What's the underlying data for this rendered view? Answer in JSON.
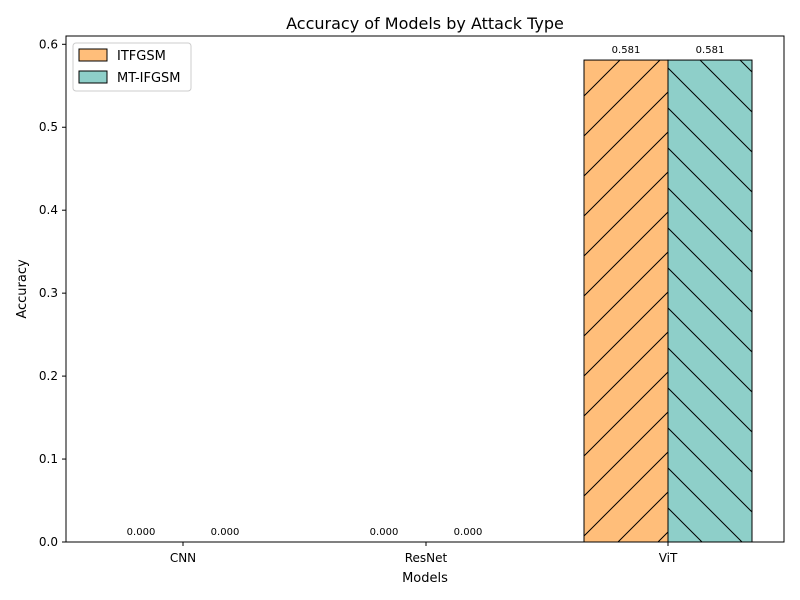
{
  "chart_data": {
    "type": "bar",
    "title": "Accuracy of Models by Attack Type",
    "xlabel": "Models",
    "ylabel": "Accuracy",
    "categories": [
      "CNN",
      "ResNet",
      "ViT"
    ],
    "series": [
      {
        "name": "ITFGSM",
        "values": [
          0.0,
          0.0,
          0.581
        ],
        "labels": [
          "0.000",
          "0.000",
          "0.581"
        ],
        "color": "#ffbe7a",
        "hatch": "forward"
      },
      {
        "name": "MT-IFGSM",
        "values": [
          0.0,
          0.0,
          0.581
        ],
        "labels": [
          "0.000",
          "0.000",
          "0.581"
        ],
        "color": "#8ecfc9",
        "hatch": "backward"
      }
    ],
    "ylim": [
      0,
      0.61
    ],
    "yticks": [
      0.0,
      0.1,
      0.2,
      0.3,
      0.4,
      0.5,
      0.6
    ],
    "ytick_labels": [
      "0.0",
      "0.1",
      "0.2",
      "0.3",
      "0.4",
      "0.5",
      "0.6"
    ],
    "legend_position": "top-left",
    "grid": false
  }
}
